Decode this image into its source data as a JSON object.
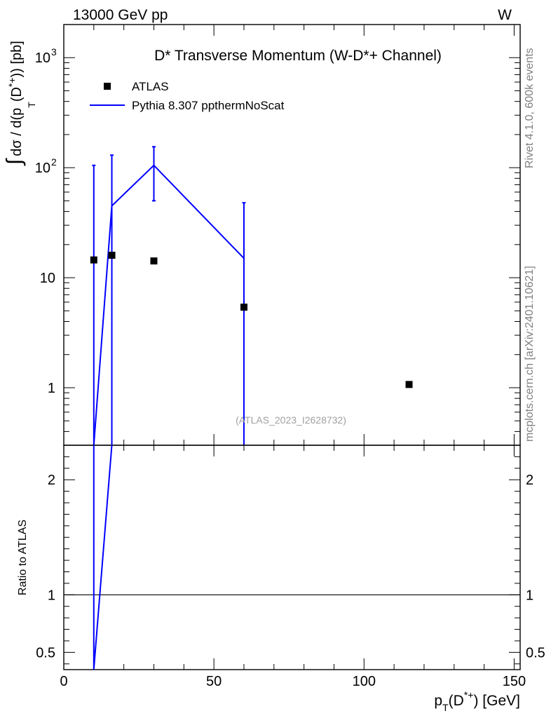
{
  "header": {
    "left": "13000 GeV pp",
    "right": "W"
  },
  "side_text": {
    "top": "Rivet 4.1.0,  600k events",
    "bottom": "mcplots.cern.ch [arXiv:2401.10621]"
  },
  "chart_data": [
    {
      "type": "scatter",
      "panel": "main",
      "title": "D* Transverse Momentum (W-D*+ Channel)",
      "annotation": "(ATLAS_2023_I2628732)",
      "ylabel": "∫ dσ / d(p_T(D*+)) [pb]",
      "ylabel_parts": {
        "integral": "∫",
        "main": "dσ / d(p",
        "sub": "T",
        "mid": "(D",
        "sup": "*+",
        "end": ")) [pb]"
      },
      "yscale": "log",
      "xlim": [
        0,
        152
      ],
      "ylim": [
        0.3,
        2000
      ],
      "y_ticks": [
        {
          "value": 1,
          "label": "1"
        },
        {
          "value": 10,
          "label": "10"
        },
        {
          "value": 100,
          "label": "10",
          "exp": "2"
        },
        {
          "value": 1000,
          "label": "10",
          "exp": "3"
        }
      ],
      "legend_placement": "top-left",
      "series": [
        {
          "name": "ATLAS",
          "kind": "markers",
          "color": "#000000",
          "x": [
            10,
            16,
            30,
            60,
            115
          ],
          "y": [
            14.5,
            16,
            14.2,
            5.4,
            1.07
          ]
        },
        {
          "name": "Pythia 8.307 ppthermNoScat",
          "kind": "line",
          "color": "#0000ff",
          "x": [
            10,
            16,
            30,
            60
          ],
          "y": [
            0.3,
            45,
            105,
            15
          ],
          "yerr_low": [
            0.3,
            0.3,
            50,
            0.3
          ],
          "yerr_high": [
            105,
            130,
            155,
            48
          ]
        }
      ]
    },
    {
      "type": "line",
      "panel": "ratio",
      "ylabel": "Ratio to ATLAS",
      "xlabel": "p_T(D*+) [GeV]",
      "xlabel_parts": {
        "main": "p",
        "sub": "T",
        "mid": "(D",
        "sup": "*+",
        "end": ") [GeV]"
      },
      "xlim": [
        0,
        152
      ],
      "ylim": [
        0.35,
        2.3
      ],
      "x_ticks": [
        0,
        50,
        100,
        150
      ],
      "y_ticks": [
        0.5,
        1,
        2
      ],
      "reference_line": 1,
      "series": [
        {
          "name": "Pythia 8.307 ppthermNoScat / ATLAS",
          "color": "#0000ff",
          "x": [
            10,
            10,
            16,
            16
          ],
          "y": [
            2.3,
            0.35,
            2.3,
            2.3
          ]
        }
      ]
    }
  ]
}
